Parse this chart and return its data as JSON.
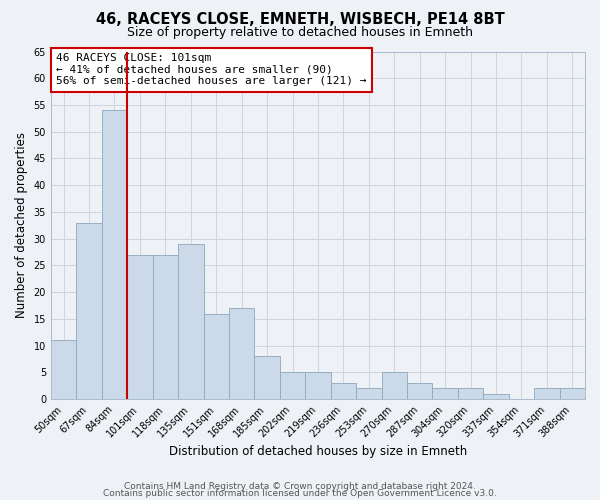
{
  "title": "46, RACEYS CLOSE, EMNETH, WISBECH, PE14 8BT",
  "subtitle": "Size of property relative to detached houses in Emneth",
  "xlabel": "Distribution of detached houses by size in Emneth",
  "ylabel": "Number of detached properties",
  "bar_color": "#ccd9e8",
  "bar_edge_color": "#8aaabb",
  "background_color": "#eef2f7",
  "categories": [
    "50sqm",
    "67sqm",
    "84sqm",
    "101sqm",
    "118sqm",
    "135sqm",
    "151sqm",
    "168sqm",
    "185sqm",
    "202sqm",
    "219sqm",
    "236sqm",
    "253sqm",
    "270sqm",
    "287sqm",
    "304sqm",
    "320sqm",
    "337sqm",
    "354sqm",
    "371sqm",
    "388sqm"
  ],
  "values": [
    11,
    33,
    54,
    27,
    27,
    29,
    16,
    17,
    8,
    5,
    5,
    3,
    2,
    5,
    3,
    2,
    2,
    1,
    0,
    2,
    2
  ],
  "vline_x_category": "101sqm",
  "vline_color": "#cc0000",
  "ylim": [
    0,
    65
  ],
  "yticks": [
    0,
    5,
    10,
    15,
    20,
    25,
    30,
    35,
    40,
    45,
    50,
    55,
    60,
    65
  ],
  "annotation_title": "46 RACEYS CLOSE: 101sqm",
  "annotation_line1": "← 41% of detached houses are smaller (90)",
  "annotation_line2": "56% of semi-detached houses are larger (121) →",
  "footer1": "Contains HM Land Registry data © Crown copyright and database right 2024.",
  "footer2": "Contains public sector information licensed under the Open Government Licence v3.0.",
  "grid_color": "#cdd5e0",
  "title_fontsize": 10.5,
  "subtitle_fontsize": 9,
  "label_fontsize": 8.5,
  "tick_fontsize": 7,
  "annot_fontsize": 8,
  "footer_fontsize": 6.5
}
